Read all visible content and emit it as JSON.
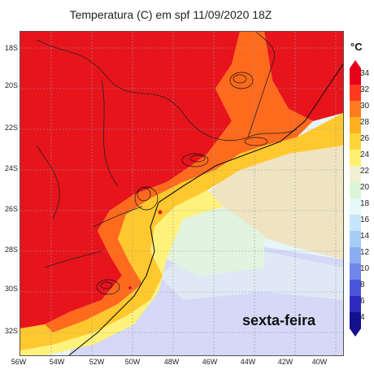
{
  "title": "Temperatura (C) em spf 11/09/2020 18Z",
  "overlay_text": "sexta-feira",
  "map": {
    "lat_labels": [
      "18S",
      "20S",
      "22S",
      "24S",
      "26S",
      "28S",
      "30S",
      "32S"
    ],
    "lon_labels": [
      "56W",
      "54W",
      "52W",
      "50W",
      "48W",
      "46W",
      "44W",
      "42W",
      "40W"
    ]
  },
  "colorbar": {
    "unit": "°C",
    "levels": [
      "34",
      "32",
      "30",
      "28",
      "26",
      "24",
      "22",
      "20",
      "18",
      "16",
      "14",
      "12",
      "10",
      "8",
      "6",
      "4"
    ],
    "colors": [
      "#e8001a",
      "#ff3a1e",
      "#ff7d20",
      "#ffb020",
      "#ffd43a",
      "#fff070",
      "#f2f0d0",
      "#d9f6d9",
      "#e8f7f7",
      "#c8e6fb",
      "#a7cdf7",
      "#8cadf3",
      "#6f86ea",
      "#4a55db",
      "#2d2ac0",
      "#15108e"
    ]
  }
}
